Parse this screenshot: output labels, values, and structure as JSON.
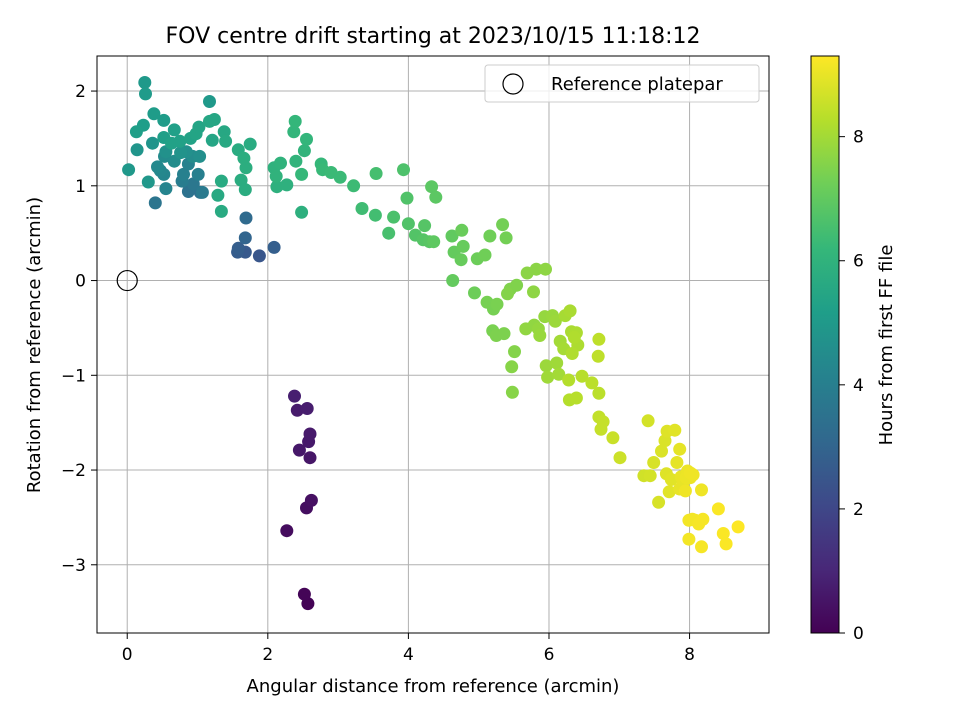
{
  "chart_data": {
    "type": "scatter",
    "title": "FOV centre drift starting at 2023/10/15 11:18:12",
    "xlabel": "Angular distance from reference (arcmin)",
    "ylabel": "Rotation from reference (arcmin)",
    "xlim": [
      -0.43,
      9.13
    ],
    "ylim": [
      -3.72,
      2.37
    ],
    "xticks": [
      0,
      2,
      4,
      6,
      8
    ],
    "yticks": [
      -3,
      -2,
      -1,
      0,
      1,
      2
    ],
    "xtick_labels": [
      "0",
      "2",
      "4",
      "6",
      "8"
    ],
    "ytick_labels": [
      "−3",
      "−2",
      "−1",
      "0",
      "1",
      "2"
    ],
    "grid": true,
    "legend": {
      "position": "upper-right",
      "entries": [
        {
          "label": "Reference platepar",
          "marker": "open-circle",
          "x": 0,
          "y": 0
        }
      ]
    },
    "colorbar": {
      "label": "Hours from first FF file",
      "colormap": "viridis",
      "range": [
        0,
        9.3
      ],
      "ticks": [
        0,
        2,
        4,
        6,
        8
      ],
      "tick_labels": [
        "0",
        "2",
        "4",
        "6",
        "8"
      ]
    },
    "colormap_stops": [
      "#440154",
      "#482878",
      "#3e4989",
      "#31688e",
      "#26828e",
      "#1f9e89",
      "#35b779",
      "#6ece58",
      "#b5de2b",
      "#fde725"
    ],
    "points": [
      [
        2.57,
        -3.41,
        0.05
      ],
      [
        2.52,
        -3.31,
        0.1
      ],
      [
        2.27,
        -2.64,
        0.3
      ],
      [
        2.55,
        -2.4,
        0.35
      ],
      [
        2.62,
        -2.32,
        0.4
      ],
      [
        2.6,
        -1.87,
        0.55
      ],
      [
        2.45,
        -1.79,
        0.6
      ],
      [
        2.58,
        -1.7,
        0.62
      ],
      [
        2.6,
        -1.62,
        0.65
      ],
      [
        2.42,
        -1.37,
        0.7
      ],
      [
        2.56,
        -1.35,
        0.75
      ],
      [
        2.38,
        -1.22,
        0.8
      ],
      [
        1.88,
        0.26,
        2.5
      ],
      [
        1.68,
        0.3,
        2.6
      ],
      [
        1.57,
        0.3,
        2.7
      ],
      [
        1.58,
        0.34,
        2.75
      ],
      [
        2.09,
        0.35,
        2.8
      ],
      [
        1.68,
        0.45,
        3.0
      ],
      [
        1.69,
        0.66,
        3.2
      ],
      [
        1.04,
        0.93,
        3.4
      ],
      [
        0.87,
        0.94,
        3.5
      ],
      [
        0.4,
        0.82,
        3.6
      ],
      [
        0.94,
        1.02,
        3.7
      ],
      [
        1.07,
        0.93,
        3.8
      ],
      [
        0.78,
        1.05,
        3.9
      ],
      [
        1.01,
        1.12,
        4.0
      ],
      [
        0.8,
        1.12,
        4.05
      ],
      [
        0.87,
        1.23,
        4.1
      ],
      [
        0.55,
        0.97,
        4.2
      ],
      [
        0.52,
        1.12,
        4.25
      ],
      [
        0.47,
        1.16,
        4.3
      ],
      [
        0.43,
        1.2,
        4.4
      ],
      [
        0.53,
        1.31,
        4.45
      ],
      [
        0.93,
        1.31,
        4.5
      ],
      [
        0.67,
        1.26,
        4.55
      ],
      [
        1.03,
        1.31,
        4.6
      ],
      [
        0.84,
        1.36,
        4.65
      ],
      [
        0.55,
        1.36,
        4.7
      ],
      [
        0.76,
        1.35,
        4.75
      ],
      [
        0.36,
        1.45,
        4.8
      ],
      [
        0.14,
        1.38,
        4.85
      ],
      [
        0.3,
        1.04,
        4.9
      ],
      [
        0.02,
        1.17,
        4.95
      ],
      [
        1.17,
        1.89,
        5.0
      ],
      [
        0.25,
        2.09,
        5.0
      ],
      [
        0.26,
        1.97,
        5.05
      ],
      [
        0.52,
        1.69,
        5.1
      ],
      [
        0.38,
        1.76,
        5.1
      ],
      [
        0.23,
        1.64,
        5.15
      ],
      [
        0.13,
        1.57,
        5.2
      ],
      [
        0.52,
        1.51,
        5.2
      ],
      [
        0.67,
        1.59,
        5.25
      ],
      [
        0.75,
        1.47,
        5.3
      ],
      [
        0.63,
        1.45,
        5.3
      ],
      [
        0.9,
        1.5,
        5.35
      ],
      [
        0.98,
        1.55,
        5.4
      ],
      [
        1.02,
        1.62,
        5.4
      ],
      [
        1.21,
        1.48,
        5.45
      ],
      [
        1.17,
        1.68,
        5.5
      ],
      [
        1.24,
        1.7,
        5.5
      ],
      [
        1.38,
        1.57,
        5.55
      ],
      [
        1.4,
        1.47,
        5.6
      ],
      [
        1.29,
        0.9,
        5.6
      ],
      [
        1.34,
        0.73,
        5.65
      ],
      [
        1.34,
        1.05,
        5.65
      ],
      [
        1.58,
        1.38,
        5.7
      ],
      [
        1.75,
        1.44,
        5.7
      ],
      [
        1.62,
        1.06,
        5.75
      ],
      [
        1.68,
        0.96,
        5.75
      ],
      [
        1.69,
        1.19,
        5.8
      ],
      [
        1.66,
        1.29,
        5.8
      ],
      [
        2.48,
        0.72,
        5.85
      ],
      [
        2.27,
        1.01,
        5.9
      ],
      [
        2.13,
        0.99,
        5.9
      ],
      [
        2.09,
        1.19,
        5.95
      ],
      [
        2.18,
        1.24,
        6.0
      ],
      [
        2.12,
        1.1,
        6.0
      ],
      [
        2.4,
        1.26,
        6.05
      ],
      [
        2.52,
        1.37,
        6.05
      ],
      [
        2.55,
        1.49,
        6.1
      ],
      [
        2.37,
        1.57,
        6.1
      ],
      [
        2.39,
        1.68,
        6.15
      ],
      [
        2.48,
        1.12,
        6.2
      ],
      [
        2.76,
        1.23,
        6.2
      ],
      [
        2.78,
        1.17,
        6.25
      ],
      [
        2.9,
        1.14,
        6.3
      ],
      [
        3.03,
        1.09,
        6.3
      ],
      [
        3.22,
        1.0,
        6.35
      ],
      [
        3.34,
        0.76,
        6.4
      ],
      [
        3.53,
        0.69,
        6.45
      ],
      [
        3.54,
        1.13,
        6.5
      ],
      [
        3.72,
        0.5,
        6.55
      ],
      [
        3.79,
        0.67,
        6.6
      ],
      [
        3.93,
        1.17,
        6.65
      ],
      [
        3.98,
        0.87,
        6.7
      ],
      [
        4.0,
        0.6,
        6.7
      ],
      [
        4.1,
        0.48,
        6.75
      ],
      [
        4.21,
        0.43,
        6.8
      ],
      [
        4.23,
        0.58,
        6.8
      ],
      [
        4.3,
        0.41,
        6.85
      ],
      [
        4.33,
        0.99,
        6.9
      ],
      [
        4.39,
        0.88,
        6.9
      ],
      [
        4.36,
        0.41,
        6.95
      ],
      [
        4.62,
        0.47,
        7.0
      ],
      [
        4.63,
        0.0,
        7.05
      ],
      [
        4.65,
        0.3,
        7.05
      ],
      [
        4.75,
        0.22,
        7.1
      ],
      [
        4.78,
        0.36,
        7.1
      ],
      [
        4.76,
        0.53,
        7.15
      ],
      [
        4.94,
        -0.13,
        7.2
      ],
      [
        4.98,
        0.23,
        7.2
      ],
      [
        5.09,
        0.27,
        7.25
      ],
      [
        5.16,
        0.47,
        7.25
      ],
      [
        5.34,
        0.59,
        7.3
      ],
      [
        5.39,
        0.45,
        7.3
      ],
      [
        5.12,
        -0.23,
        7.35
      ],
      [
        5.21,
        -0.3,
        7.35
      ],
      [
        5.26,
        -0.25,
        7.4
      ],
      [
        5.2,
        -0.53,
        7.4
      ],
      [
        5.25,
        -0.58,
        7.45
      ],
      [
        5.36,
        -0.56,
        7.45
      ],
      [
        5.45,
        -0.09,
        7.5
      ],
      [
        5.54,
        -0.05,
        7.5
      ],
      [
        5.41,
        -0.14,
        7.55
      ],
      [
        5.51,
        -0.75,
        7.55
      ],
      [
        5.47,
        -0.91,
        7.6
      ],
      [
        5.48,
        -1.18,
        7.6
      ],
      [
        5.69,
        0.08,
        7.65
      ],
      [
        5.82,
        0.12,
        7.65
      ],
      [
        5.95,
        0.12,
        7.7
      ],
      [
        5.78,
        -0.12,
        7.7
      ],
      [
        5.67,
        -0.51,
        7.75
      ],
      [
        5.79,
        -0.47,
        7.75
      ],
      [
        5.85,
        -0.51,
        7.8
      ],
      [
        5.94,
        -0.38,
        7.8
      ],
      [
        5.87,
        -0.58,
        7.85
      ],
      [
        6.05,
        -0.37,
        7.85
      ],
      [
        6.09,
        -0.43,
        7.9
      ],
      [
        5.96,
        -0.9,
        7.9
      ],
      [
        5.98,
        -1.02,
        7.95
      ],
      [
        6.11,
        -0.87,
        7.95
      ],
      [
        6.14,
        -0.99,
        8.0
      ],
      [
        6.16,
        -0.64,
        8.0
      ],
      [
        6.21,
        -0.72,
        8.05
      ],
      [
        6.23,
        -0.37,
        8.05
      ],
      [
        6.3,
        -0.32,
        8.1
      ],
      [
        6.32,
        -0.54,
        8.1
      ],
      [
        6.39,
        -0.55,
        8.15
      ],
      [
        6.41,
        -0.68,
        8.15
      ],
      [
        6.36,
        -0.6,
        8.2
      ],
      [
        6.33,
        -0.77,
        8.2
      ],
      [
        6.28,
        -1.05,
        8.25
      ],
      [
        6.29,
        -1.26,
        8.25
      ],
      [
        6.39,
        -1.24,
        8.3
      ],
      [
        6.47,
        -1.01,
        8.3
      ],
      [
        6.61,
        -1.08,
        8.35
      ],
      [
        6.71,
        -1.19,
        8.35
      ],
      [
        6.7,
        -0.8,
        8.4
      ],
      [
        6.71,
        -0.62,
        8.4
      ],
      [
        6.71,
        -1.44,
        8.45
      ],
      [
        6.77,
        -1.49,
        8.5
      ],
      [
        6.74,
        -1.57,
        8.5
      ],
      [
        6.91,
        -1.66,
        8.55
      ],
      [
        7.01,
        -1.87,
        8.6
      ],
      [
        7.35,
        -2.06,
        8.65
      ],
      [
        7.41,
        -1.48,
        8.7
      ],
      [
        7.44,
        -2.06,
        8.7
      ],
      [
        7.49,
        -1.92,
        8.75
      ],
      [
        7.56,
        -2.34,
        8.75
      ],
      [
        7.6,
        -1.8,
        8.8
      ],
      [
        7.65,
        -1.69,
        8.8
      ],
      [
        7.68,
        -1.59,
        8.85
      ],
      [
        7.67,
        -2.04,
        8.85
      ],
      [
        7.71,
        -2.23,
        8.9
      ],
      [
        7.74,
        -2.1,
        8.9
      ],
      [
        7.79,
        -1.58,
        8.9
      ],
      [
        7.82,
        -1.92,
        8.95
      ],
      [
        7.86,
        -1.78,
        8.95
      ],
      [
        7.88,
        -2.07,
        9.0
      ],
      [
        7.86,
        -2.2,
        9.0
      ],
      [
        7.91,
        -2.14,
        9.0
      ],
      [
        7.95,
        -2.08,
        9.05
      ],
      [
        7.97,
        -2.01,
        9.05
      ],
      [
        8.01,
        -2.08,
        9.05
      ],
      [
        8.05,
        -2.05,
        9.1
      ],
      [
        8.01,
        -2.03,
        9.1
      ],
      [
        7.94,
        -2.22,
        9.1
      ],
      [
        8.17,
        -2.21,
        9.1
      ],
      [
        7.99,
        -2.53,
        9.15
      ],
      [
        8.04,
        -2.52,
        9.15
      ],
      [
        8.08,
        -2.53,
        9.15
      ],
      [
        7.99,
        -2.73,
        9.15
      ],
      [
        8.13,
        -2.57,
        9.2
      ],
      [
        8.19,
        -2.52,
        9.2
      ],
      [
        8.17,
        -2.81,
        9.2
      ],
      [
        8.41,
        -2.41,
        9.25
      ],
      [
        8.48,
        -2.67,
        9.25
      ],
      [
        8.52,
        -2.78,
        9.25
      ],
      [
        8.69,
        -2.6,
        9.3
      ]
    ]
  }
}
